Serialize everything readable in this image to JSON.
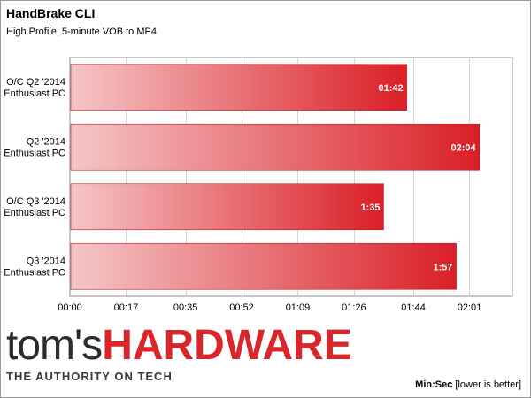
{
  "header": {
    "title": "HandBrake CLI",
    "subtitle": "High Profile, 5-minute VOB to MP4"
  },
  "chart_data": {
    "type": "bar",
    "orientation": "horizontal",
    "categories": [
      [
        "O/C Q2 '2014",
        "Enthusiast PC"
      ],
      [
        "Q2 '2014",
        "Enthusiast PC"
      ],
      [
        "O/C Q3 '2014",
        "Enthusiast PC"
      ],
      [
        "Q3 '2014",
        "Enthusiast PC"
      ]
    ],
    "values_seconds": [
      102,
      124,
      95,
      117
    ],
    "value_labels": [
      "01:42",
      "02:04",
      "1:35",
      "1:57"
    ],
    "xlim_seconds": [
      0,
      134
    ],
    "x_ticks_seconds": [
      0,
      17,
      35,
      52,
      69,
      86,
      104,
      121
    ],
    "x_tick_labels": [
      "00:00",
      "00:17",
      "00:35",
      "00:52",
      "01:09",
      "01:26",
      "01:44",
      "02:01"
    ],
    "grid": true,
    "bar_gradient": {
      "start": "#f5c6c7",
      "end": "#da1f26"
    }
  },
  "footer": {
    "brand_part1": "tom's",
    "brand_part2": "HARDWARE",
    "tagline": "THE AUTHORITY ON TECH",
    "unit_bold": "Min:Sec",
    "unit_rest": " [lower is better]"
  }
}
